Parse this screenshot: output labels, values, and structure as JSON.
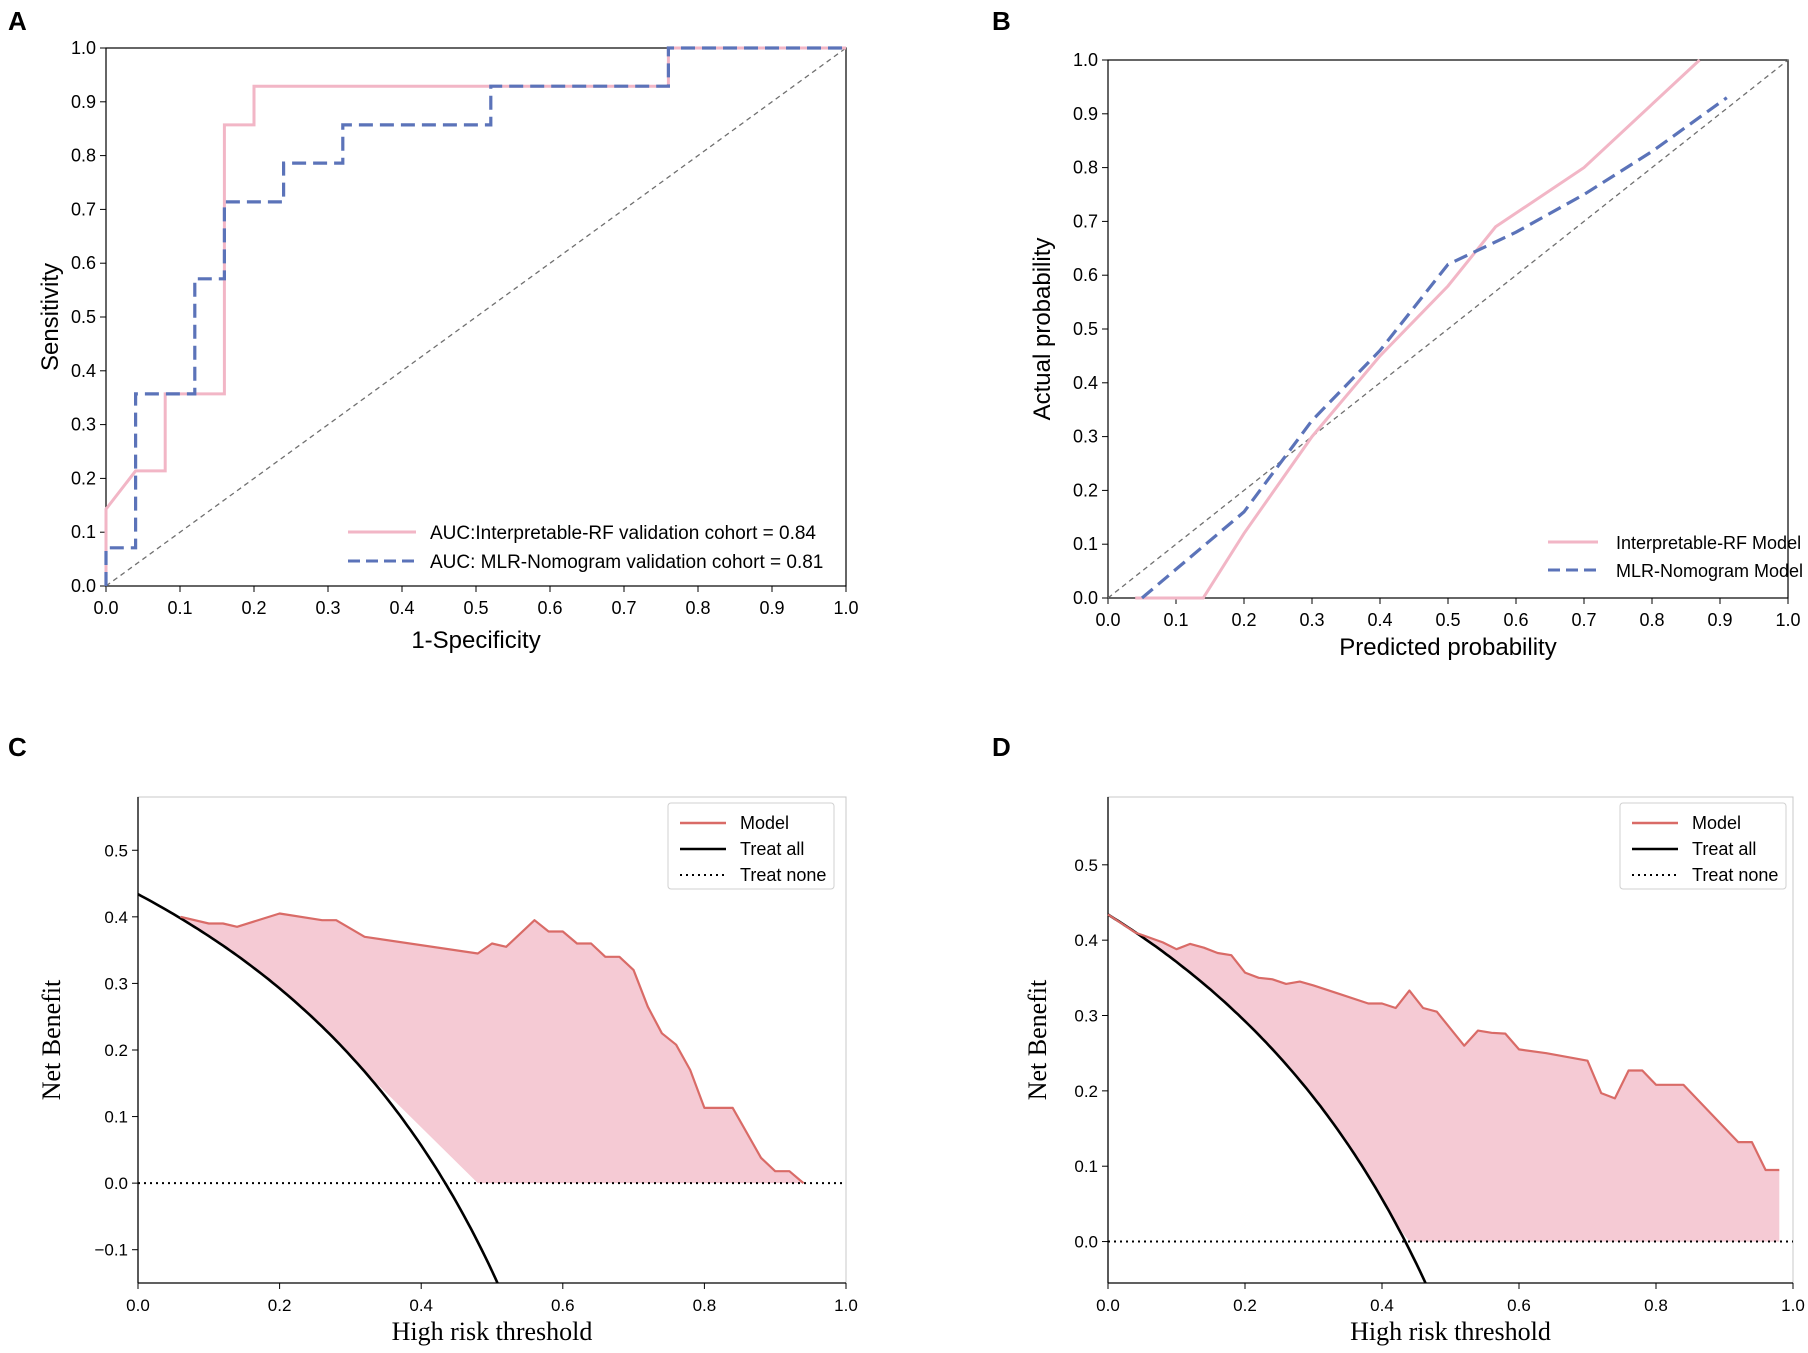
{
  "colors": {
    "pink": "#f2b6c6",
    "blue": "#5b73b9",
    "diag": "#707070",
    "model": "#d96b67",
    "fill": "#f5cad4",
    "black": "#000000"
  },
  "chart_data": [
    {
      "id": "A",
      "panel_label": "A",
      "type": "line",
      "title": "",
      "xlabel": "1-Specificity",
      "ylabel": "Sensitivity",
      "xlim": [
        0,
        1
      ],
      "ylim": [
        0,
        1
      ],
      "xticks": [
        "0.0",
        "0.1",
        "0.2",
        "0.3",
        "0.4",
        "0.5",
        "0.6",
        "0.7",
        "0.8",
        "0.9",
        "1.0"
      ],
      "yticks": [
        "0.0",
        "0.1",
        "0.2",
        "0.3",
        "0.4",
        "0.5",
        "0.6",
        "0.7",
        "0.8",
        "0.9",
        "1.0"
      ],
      "legend_position": "lower-right",
      "series": [
        {
          "name": "AUC:Interpretable-RF  validation cohort = 0.84",
          "style": "solid",
          "color_key": "pink",
          "x": [
            0,
            0,
            0.04,
            0.04,
            0.08,
            0.08,
            0.16,
            0.16,
            0.2,
            0.2,
            0.76,
            0.76,
            1.0
          ],
          "y": [
            0,
            0.143,
            0.214,
            0.214,
            0.214,
            0.357,
            0.357,
            0.857,
            0.857,
            0.929,
            0.929,
            1.0,
            1.0
          ]
        },
        {
          "name": "AUC: MLR-Nomogram validation cohort = 0.81",
          "style": "dashed",
          "color_key": "blue",
          "x": [
            0,
            0,
            0.04,
            0.04,
            0.12,
            0.12,
            0.16,
            0.16,
            0.24,
            0.24,
            0.32,
            0.32,
            0.52,
            0.52,
            0.76,
            0.76,
            1.0
          ],
          "y": [
            0,
            0.071,
            0.071,
            0.357,
            0.357,
            0.571,
            0.571,
            0.714,
            0.714,
            0.786,
            0.786,
            0.857,
            0.857,
            0.929,
            0.929,
            1.0,
            1.0
          ]
        },
        {
          "name": "reference",
          "style": "diagonal",
          "color_key": "diag",
          "x": [
            0,
            1
          ],
          "y": [
            0,
            1
          ]
        }
      ]
    },
    {
      "id": "B",
      "panel_label": "B",
      "type": "line",
      "title": "",
      "xlabel": "Predicted probability",
      "ylabel": "Actual probability",
      "xlim": [
        0,
        1
      ],
      "ylim": [
        0,
        1
      ],
      "xticks": [
        "0.0",
        "0.1",
        "0.2",
        "0.3",
        "0.4",
        "0.5",
        "0.6",
        "0.7",
        "0.8",
        "0.9",
        "1.0"
      ],
      "yticks": [
        "0.0",
        "0.1",
        "0.2",
        "0.3",
        "0.4",
        "0.5",
        "0.6",
        "0.7",
        "0.8",
        "0.9",
        "1.0"
      ],
      "legend_position": "lower-right",
      "series": [
        {
          "name": "Interpretable-RF Model",
          "style": "solid",
          "color_key": "pink",
          "x": [
            0.04,
            0.14,
            0.2,
            0.3,
            0.4,
            0.5,
            0.57,
            0.7,
            0.87
          ],
          "y": [
            0.0,
            0.0,
            0.12,
            0.3,
            0.45,
            0.58,
            0.69,
            0.8,
            1.0
          ]
        },
        {
          "name": "MLR-Nomogram Model",
          "style": "dashed",
          "color_key": "blue",
          "x": [
            0.05,
            0.2,
            0.3,
            0.4,
            0.5,
            0.6,
            0.7,
            0.8,
            0.91
          ],
          "y": [
            0.0,
            0.16,
            0.33,
            0.46,
            0.62,
            0.68,
            0.75,
            0.83,
            0.93
          ]
        },
        {
          "name": "reference",
          "style": "diagonal",
          "color_key": "diag",
          "x": [
            0,
            1
          ],
          "y": [
            0,
            1
          ]
        }
      ]
    },
    {
      "id": "C",
      "panel_label": "C",
      "type": "area",
      "title": "",
      "xlabel": "High risk threshold",
      "ylabel": "Net Benefit",
      "xlim": [
        0,
        1
      ],
      "ylim": [
        -0.15,
        0.58
      ],
      "xticks": [
        "0.0",
        "0.2",
        "0.4",
        "0.6",
        "0.8",
        "1.0"
      ],
      "yticks": [
        "−0.1",
        "0.0",
        "0.1",
        "0.2",
        "0.3",
        "0.4",
        "0.5"
      ],
      "ytick_values": [
        -0.1,
        0,
        0.1,
        0.2,
        0.3,
        0.4,
        0.5
      ],
      "legend_position": "top-right",
      "prevalence": 0.434,
      "series": [
        {
          "name": "Model",
          "style": "solid",
          "color_key": "model",
          "x": [
            0.06,
            0.1,
            0.12,
            0.14,
            0.2,
            0.26,
            0.28,
            0.32,
            0.48,
            0.5,
            0.52,
            0.56,
            0.58,
            0.6,
            0.62,
            0.64,
            0.66,
            0.68,
            0.7,
            0.72,
            0.74,
            0.76,
            0.78,
            0.8,
            0.84,
            0.88,
            0.9,
            0.92,
            0.94
          ],
          "y": [
            0.4,
            0.39,
            0.39,
            0.385,
            0.405,
            0.395,
            0.395,
            0.37,
            0.345,
            0.36,
            0.355,
            0.395,
            0.378,
            0.378,
            0.36,
            0.36,
            0.34,
            0.34,
            0.32,
            0.265,
            0.225,
            0.208,
            0.17,
            0.113,
            0.113,
            0.038,
            0.018,
            0.018,
            0.0
          ]
        },
        {
          "name": "Treat all",
          "style": "solid",
          "color_key": "black"
        },
        {
          "name": "Treat none",
          "style": "dotted",
          "color_key": "black"
        }
      ]
    },
    {
      "id": "D",
      "panel_label": "D",
      "type": "area",
      "title": "",
      "xlabel": "High risk threshold",
      "ylabel": "Net Benefit",
      "xlim": [
        0,
        1
      ],
      "ylim": [
        -0.055,
        0.59
      ],
      "xticks": [
        "0.0",
        "0.2",
        "0.4",
        "0.6",
        "0.8",
        "1.0"
      ],
      "yticks": [
        "0.0",
        "0.1",
        "0.2",
        "0.3",
        "0.4",
        "0.5"
      ],
      "ytick_values": [
        0,
        0.1,
        0.2,
        0.3,
        0.4,
        0.5
      ],
      "legend_position": "top-right",
      "prevalence": 0.434,
      "series": [
        {
          "name": "Model",
          "style": "solid",
          "color_key": "model",
          "x": [
            0.0,
            0.04,
            0.08,
            0.1,
            0.12,
            0.14,
            0.16,
            0.18,
            0.2,
            0.22,
            0.24,
            0.26,
            0.28,
            0.3,
            0.34,
            0.38,
            0.4,
            0.42,
            0.44,
            0.46,
            0.48,
            0.52,
            0.54,
            0.56,
            0.58,
            0.6,
            0.64,
            0.7,
            0.72,
            0.74,
            0.76,
            0.78,
            0.8,
            0.84,
            0.92,
            0.94,
            0.96,
            0.98
          ],
          "y": [
            0.434,
            0.41,
            0.397,
            0.388,
            0.395,
            0.39,
            0.383,
            0.38,
            0.357,
            0.35,
            0.348,
            0.342,
            0.345,
            0.34,
            0.328,
            0.316,
            0.316,
            0.31,
            0.333,
            0.31,
            0.305,
            0.26,
            0.28,
            0.277,
            0.276,
            0.255,
            0.25,
            0.24,
            0.197,
            0.19,
            0.227,
            0.227,
            0.208,
            0.208,
            0.132,
            0.132,
            0.095,
            0.095
          ]
        },
        {
          "name": "Treat all",
          "style": "solid",
          "color_key": "black"
        },
        {
          "name": "Treat none",
          "style": "dotted",
          "color_key": "black"
        }
      ]
    }
  ]
}
